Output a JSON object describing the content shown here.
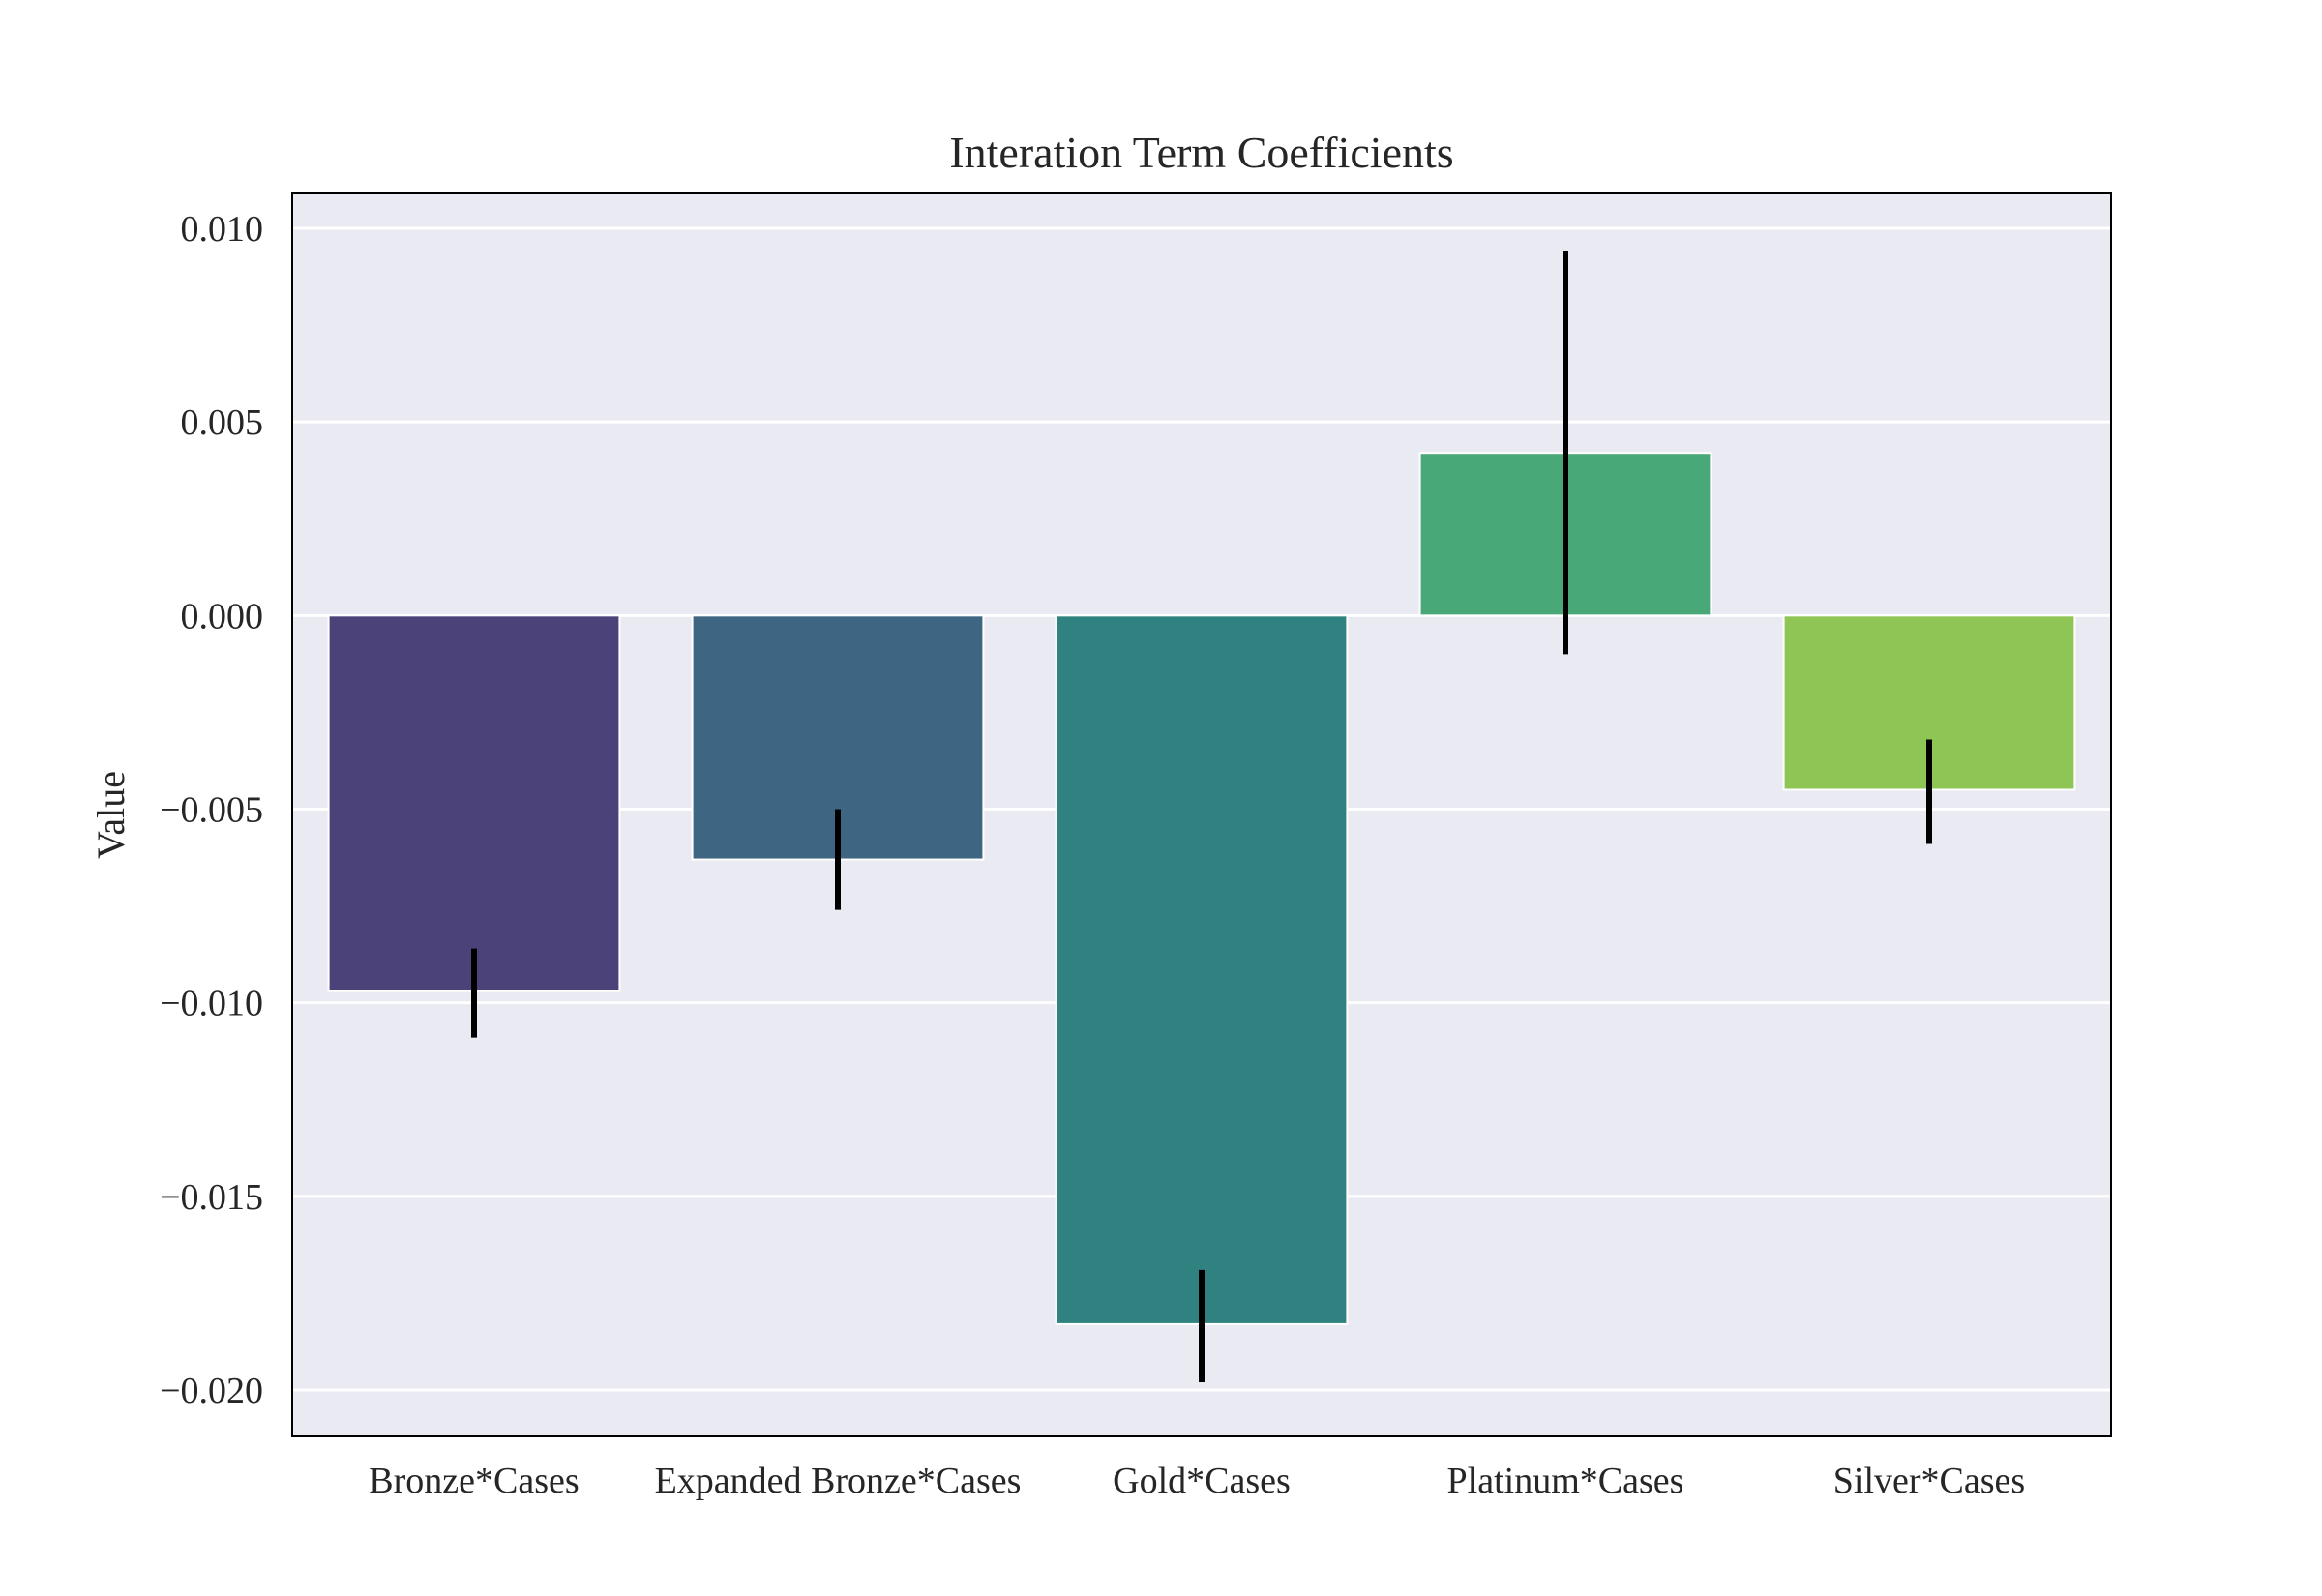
{
  "chart_data": {
    "type": "bar",
    "title": "Interation Term Coefficients",
    "xlabel": "",
    "ylabel": "Value",
    "categories": [
      "Bronze*Cases",
      "Expanded Bronze*Cases",
      "Gold*Cases",
      "Platinum*Cases",
      "Silver*Cases"
    ],
    "values": [
      -0.0097,
      -0.0063,
      -0.0183,
      0.0042,
      -0.0045
    ],
    "error_bars": [
      {
        "low": -0.0109,
        "high": -0.0086
      },
      {
        "low": -0.0076,
        "high": -0.005
      },
      {
        "low": -0.0198,
        "high": -0.0169
      },
      {
        "low": -0.001,
        "high": 0.0094
      },
      {
        "low": -0.0059,
        "high": -0.0032
      }
    ],
    "colors": [
      "#4a4278",
      "#3e6683",
      "#2f827f",
      "#48a877",
      "#8ec555"
    ],
    "ylim": [
      -0.0212,
      0.0109
    ],
    "yticks": [
      0.01,
      0.005,
      0.0,
      -0.005,
      -0.01,
      -0.015,
      -0.02
    ],
    "ytick_labels": [
      "0.010",
      "0.005",
      "0.000",
      "−0.005",
      "−0.010",
      "−0.015",
      "−0.020"
    ],
    "grid": true,
    "background": "#eaeaf2",
    "grid_color": "#ffffff",
    "error_color": "#000000"
  }
}
